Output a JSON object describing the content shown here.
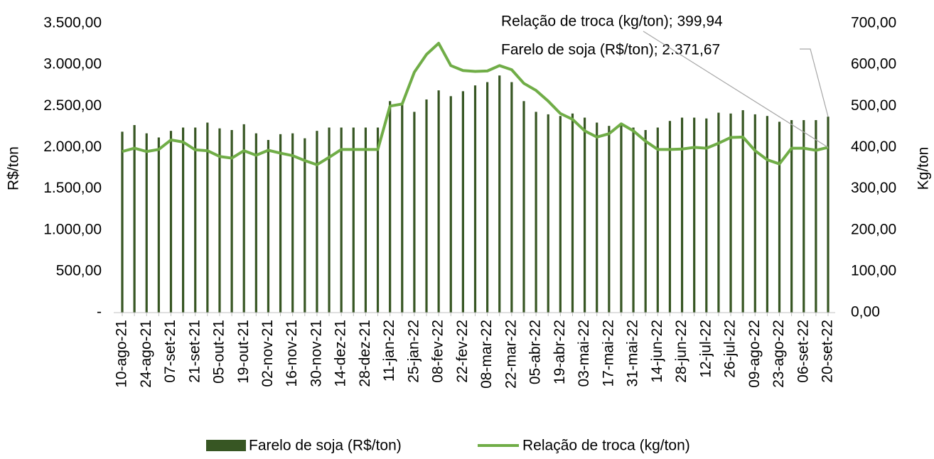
{
  "chart_data": {
    "type": "bar_line",
    "y_label": "R$/ton",
    "y2_label": "Kg/ton",
    "categories": [
      "10-ago-21",
      null,
      "24-ago-21",
      null,
      "07-set-21",
      null,
      "21-set-21",
      null,
      "05-out-21",
      null,
      "19-out-21",
      null,
      "02-nov-21",
      null,
      "16-nov-21",
      null,
      "30-nov-21",
      null,
      "14-dez-21",
      null,
      "28-dez-21",
      null,
      "11-jan-22",
      null,
      "25-jan-22",
      null,
      "08-fev-22",
      null,
      "22-fev-22",
      null,
      "08-mar-22",
      null,
      "22-mar-22",
      null,
      "05-abr-22",
      null,
      "19-abr-22",
      null,
      "03-mai-22",
      null,
      "17-mai-22",
      null,
      "31-mai-22",
      null,
      "14-jun-22",
      null,
      "28-jun-22",
      null,
      "12-jul-22",
      null,
      "26-jul-22",
      null,
      "09-ago-22",
      null,
      "23-ago-22",
      null,
      "06-set-22",
      null,
      "20-set-22"
    ],
    "series": [
      {
        "name": "Farelo de soja (R$/ton)",
        "type": "bar",
        "color": "#375623",
        "values": [
          2190,
          2270,
          2170,
          2120,
          2200,
          2240,
          2240,
          2300,
          2230,
          2210,
          2280,
          2170,
          2090,
          2160,
          2170,
          2110,
          2200,
          2240,
          2240,
          2240,
          2240,
          2240,
          2560,
          2520,
          2430,
          2580,
          2690,
          2620,
          2680,
          2750,
          2790,
          2870,
          2790,
          2560,
          2430,
          2400,
          2380,
          2410,
          2360,
          2300,
          2260,
          2290,
          2240,
          2210,
          2240,
          2320,
          2360,
          2360,
          2350,
          2420,
          2410,
          2450,
          2400,
          2380,
          2310,
          2330,
          2330,
          2330,
          2371.67
        ]
      },
      {
        "name": "Relação de troca (kg/ton)",
        "type": "line",
        "axis": "y2",
        "color": "#70ad47",
        "values": [
          390,
          398,
          390,
          395,
          418,
          413,
          394,
          392,
          378,
          374,
          392,
          381,
          393,
          386,
          380,
          368,
          358,
          376,
          395,
          395,
          395,
          395,
          500,
          505,
          582,
          625,
          652,
          598,
          586,
          584,
          585,
          598,
          588,
          555,
          538,
          512,
          482,
          468,
          440,
          425,
          433,
          457,
          440,
          415,
          395,
          395,
          396,
          400,
          398,
          410,
          424,
          425,
          392,
          370,
          360,
          398,
          398,
          393,
          399.94
        ]
      }
    ],
    "annotations": [
      "Relação de troca (kg/ton); 399,94",
      "Farelo de soja (R$/ton); 2.371,67"
    ],
    "ylim": [
      0,
      3500
    ],
    "yticks": [
      {
        "value": 0,
        "label": "-"
      },
      {
        "value": 500,
        "label": "500,00"
      },
      {
        "value": 1000,
        "label": "1.000,00"
      },
      {
        "value": 1500,
        "label": "1.500,00"
      },
      {
        "value": 2000,
        "label": "2.000,00"
      },
      {
        "value": 2500,
        "label": "2.500,00"
      },
      {
        "value": 3000,
        "label": "3.000,00"
      },
      {
        "value": 3500,
        "label": "3.500,00"
      }
    ],
    "y2lim": [
      0,
      700
    ],
    "y2ticks": [
      {
        "value": 0,
        "label": "0,00"
      },
      {
        "value": 100,
        "label": "100,00"
      },
      {
        "value": 200,
        "label": "200,00"
      },
      {
        "value": 300,
        "label": "300,00"
      },
      {
        "value": 400,
        "label": "400,00"
      },
      {
        "value": 500,
        "label": "500,00"
      },
      {
        "value": 600,
        "label": "600,00"
      },
      {
        "value": 700,
        "label": "700,00"
      }
    ],
    "legend": "bottom",
    "grid": false
  }
}
